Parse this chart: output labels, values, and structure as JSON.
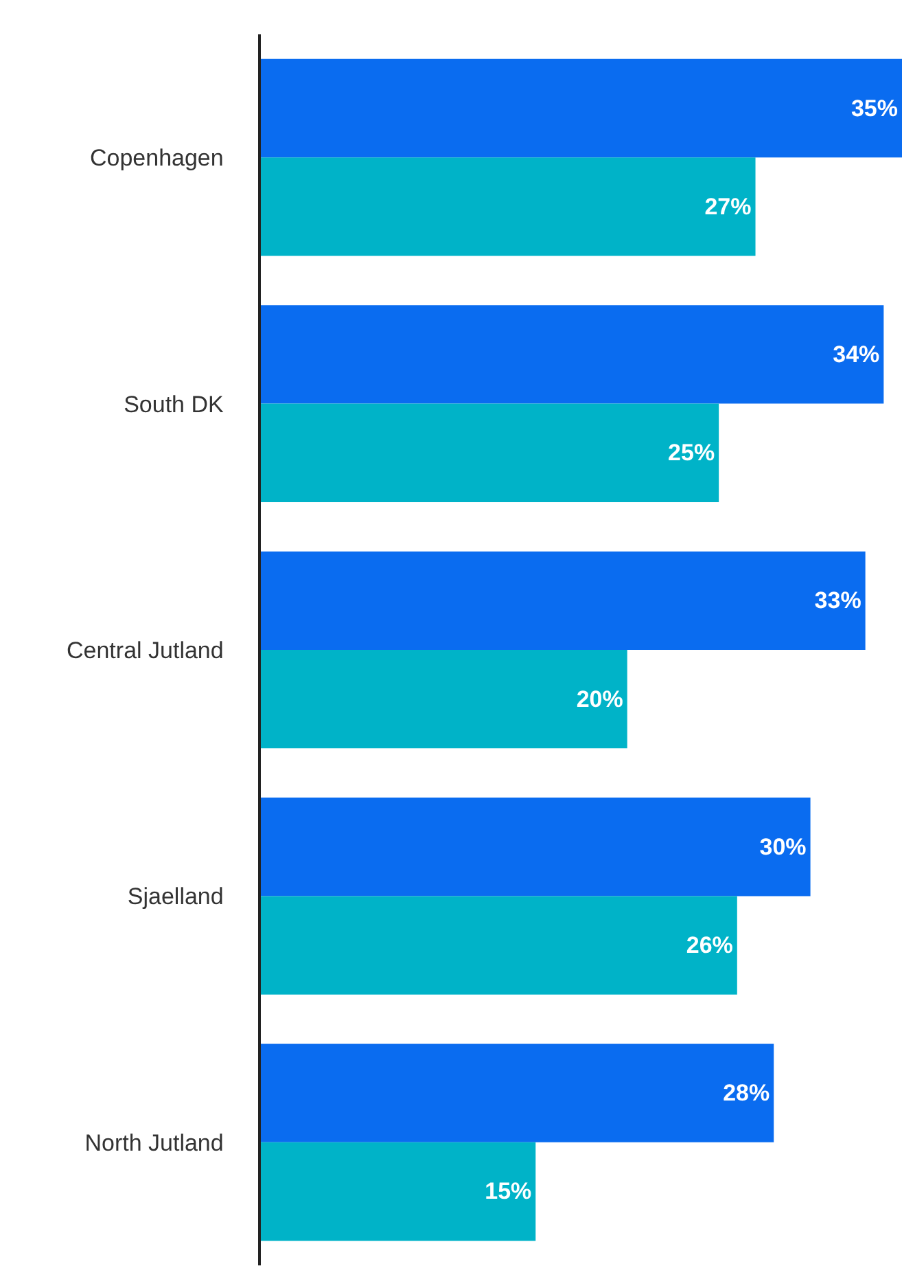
{
  "chart_data": {
    "type": "bar",
    "orientation": "horizontal",
    "categories": [
      "Copenhagen",
      "South DK",
      "Central Jutland",
      "Sjaelland",
      "North Jutland"
    ],
    "series": [
      {
        "color": "#0a6cf0",
        "values": [
          35,
          34,
          33,
          30,
          28
        ],
        "value_labels": [
          "35%",
          "34%",
          "33%",
          "30%",
          "28%"
        ]
      },
      {
        "color": "#00b3c8",
        "values": [
          27,
          25,
          20,
          26,
          15
        ],
        "value_labels": [
          "27%",
          "25%",
          "20%",
          "26%",
          "15%"
        ]
      }
    ],
    "xlim": [
      0,
      35
    ],
    "tick_labels": "y"
  }
}
